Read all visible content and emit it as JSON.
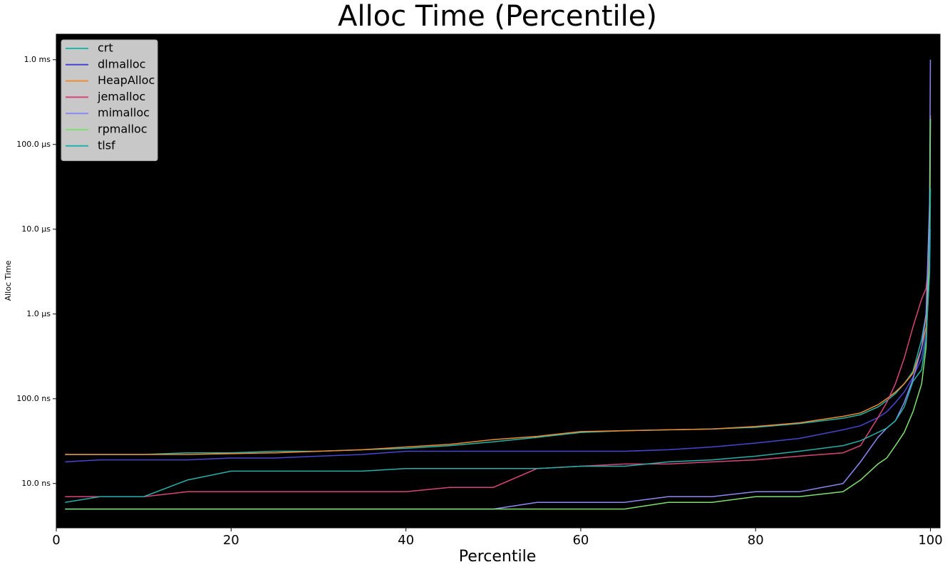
{
  "chart_data": {
    "type": "line",
    "title": "Alloc Time (Percentile)",
    "xlabel": "Percentile",
    "ylabel": "Alloc Time",
    "x": [
      1,
      5,
      10,
      15,
      20,
      25,
      30,
      35,
      40,
      45,
      50,
      55,
      60,
      65,
      70,
      75,
      80,
      85,
      90,
      92,
      94,
      95,
      96,
      97,
      98,
      99,
      99.5,
      99.9,
      100
    ],
    "series": [
      {
        "name": "crt",
        "color": "#1fb8a8",
        "values": [
          22,
          22,
          22,
          23,
          23,
          24,
          24,
          25,
          26,
          28,
          31,
          35,
          40,
          42,
          43,
          44,
          46,
          51,
          59,
          65,
          80,
          95,
          115,
          150,
          210,
          500,
          1000,
          8000,
          30000
        ]
      },
      {
        "name": "dlmalloc",
        "color": "#4646d0",
        "values": [
          18,
          19,
          19,
          19,
          20,
          20,
          21,
          22,
          24,
          24,
          24,
          24,
          24,
          24,
          25,
          27,
          30,
          34,
          43,
          48,
          60,
          70,
          90,
          120,
          180,
          300,
          600,
          3000,
          10000
        ]
      },
      {
        "name": "HeapAlloc",
        "color": "#f08a30",
        "values": [
          22,
          22,
          22,
          22,
          22.5,
          23,
          24,
          25,
          27,
          29,
          33,
          36,
          41,
          42,
          43,
          44,
          47,
          52,
          62,
          68,
          85,
          100,
          120,
          150,
          200,
          400,
          700,
          5000,
          220000
        ]
      },
      {
        "name": "jemalloc",
        "color": "#d8457a",
        "values": [
          7,
          7,
          7,
          8,
          8,
          8,
          8,
          8,
          8,
          9,
          9,
          15,
          16,
          17,
          17,
          18,
          19,
          21,
          23,
          28,
          60,
          90,
          150,
          300,
          700,
          1500,
          2000,
          5000,
          20000
        ]
      },
      {
        "name": "mimalloc",
        "color": "#8a8af5",
        "values": [
          5,
          5,
          5,
          5,
          5,
          5,
          5,
          5,
          5,
          5,
          5,
          6,
          6,
          6,
          7,
          7,
          8,
          8,
          10,
          18,
          35,
          45,
          55,
          90,
          170,
          400,
          1000,
          20000,
          1000000
        ]
      },
      {
        "name": "rpmalloc",
        "color": "#7ee070",
        "values": [
          5,
          5,
          5,
          5,
          5,
          5,
          5,
          5,
          5,
          5,
          5,
          5,
          5,
          5,
          6,
          6,
          7,
          7,
          8,
          11,
          17,
          20,
          28,
          40,
          70,
          150,
          400,
          5000,
          200000
        ]
      },
      {
        "name": "tlsf",
        "color": "#26b0aa",
        "values": [
          6,
          7,
          7,
          11,
          14,
          14,
          14,
          14,
          15,
          15,
          15,
          15,
          16,
          16,
          18,
          19,
          21,
          24,
          28,
          32,
          40,
          45,
          55,
          80,
          160,
          220,
          500,
          3000,
          30000
        ]
      }
    ],
    "xlim": [
      0,
      101.1
    ],
    "xticks": [
      0,
      20,
      40,
      60,
      80,
      100
    ],
    "ylim": [
      3.0,
      2000000
    ],
    "ylog": true,
    "yticks": [
      {
        "value": 10,
        "label": "10.0 ns"
      },
      {
        "value": 100,
        "label": "100.0 ns"
      },
      {
        "value": 1000,
        "label": "1.0 µs"
      },
      {
        "value": 10000,
        "label": "10.0 µs"
      },
      {
        "value": 100000,
        "label": "100.0 µs"
      },
      {
        "value": 1000000,
        "label": "1.0 ms"
      }
    ],
    "legend": "upper-left"
  }
}
